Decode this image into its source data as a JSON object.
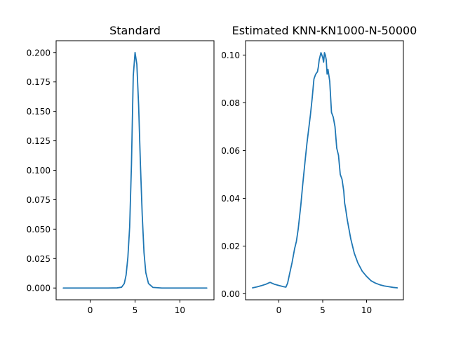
{
  "figure": {
    "background": "#ffffff",
    "line_color": "#1f77b4"
  },
  "chart_data": [
    {
      "type": "line",
      "title": "Standard",
      "xlabel": "",
      "ylabel": "",
      "xlim": [
        -3.8,
        13.8
      ],
      "ylim": [
        -0.01,
        0.21
      ],
      "xticks": [
        0,
        5,
        10
      ],
      "yticks": [
        0.0,
        0.025,
        0.05,
        0.075,
        0.1,
        0.125,
        0.15,
        0.175,
        0.2
      ],
      "ytick_labels": [
        "0.000",
        "0.025",
        "0.050",
        "0.075",
        "0.100",
        "0.125",
        "0.150",
        "0.175",
        "0.200"
      ],
      "xtick_labels": [
        "0",
        "5",
        "10"
      ],
      "grid": false,
      "series": [
        {
          "x": [
            -3,
            -1,
            0,
            1,
            2,
            3,
            3.5,
            3.8,
            4.0,
            4.2,
            4.4,
            4.6,
            4.8,
            5.0,
            5.2,
            5.4,
            5.6,
            5.8,
            6.0,
            6.2,
            6.5,
            7.0,
            8,
            10,
            13
          ],
          "y": [
            0,
            0,
            0,
            0,
            0,
            0.0001,
            0.0007,
            0.0038,
            0.011,
            0.026,
            0.052,
            0.105,
            0.18,
            0.2,
            0.19,
            0.155,
            0.105,
            0.062,
            0.03,
            0.013,
            0.0038,
            0.0005,
            0,
            0,
            0
          ]
        }
      ]
    },
    {
      "type": "line",
      "title": "Estimated KNN-KN1000-N-50000",
      "xlabel": "",
      "ylabel": "",
      "xlim": [
        -3.8,
        14.2
      ],
      "ylim": [
        -0.0025,
        0.106
      ],
      "xticks": [
        0,
        5,
        10
      ],
      "yticks": [
        0.0,
        0.02,
        0.04,
        0.06,
        0.08,
        0.1
      ],
      "ytick_labels": [
        "0.00",
        "0.02",
        "0.04",
        "0.06",
        "0.08",
        "0.10"
      ],
      "xtick_labels": [
        "0",
        "5",
        "10"
      ],
      "grid": false,
      "series": [
        {
          "x": [
            -3.0,
            -2.5,
            -2.0,
            -1.5,
            -1.0,
            -0.5,
            0.0,
            0.5,
            0.8,
            1.0,
            1.2,
            1.5,
            1.8,
            2.0,
            2.2,
            2.5,
            2.7,
            3.0,
            3.2,
            3.4,
            3.6,
            3.8,
            4.0,
            4.2,
            4.4,
            4.5,
            4.6,
            4.8,
            5.0,
            5.1,
            5.2,
            5.3,
            5.4,
            5.5,
            5.6,
            5.8,
            6.0,
            6.2,
            6.4,
            6.6,
            6.8,
            7.0,
            7.2,
            7.4,
            7.5,
            7.6,
            7.8,
            8.0,
            8.2,
            8.4,
            8.6,
            8.8,
            9.0,
            9.5,
            10.0,
            10.5,
            11.0,
            11.5,
            12.0,
            12.5,
            13.0,
            13.5
          ],
          "y": [
            0.0025,
            0.0029,
            0.0034,
            0.004,
            0.0048,
            0.004,
            0.0035,
            0.003,
            0.0028,
            0.0045,
            0.008,
            0.013,
            0.019,
            0.022,
            0.027,
            0.037,
            0.045,
            0.056,
            0.063,
            0.069,
            0.075,
            0.082,
            0.09,
            0.092,
            0.093,
            0.095,
            0.098,
            0.101,
            0.099,
            0.097,
            0.101,
            0.1,
            0.098,
            0.092,
            0.094,
            0.089,
            0.076,
            0.074,
            0.07,
            0.061,
            0.058,
            0.05,
            0.048,
            0.043,
            0.038,
            0.036,
            0.031,
            0.027,
            0.023,
            0.02,
            0.017,
            0.015,
            0.013,
            0.0095,
            0.0073,
            0.0055,
            0.0045,
            0.0038,
            0.0033,
            0.003,
            0.0027,
            0.0025
          ]
        }
      ]
    }
  ]
}
